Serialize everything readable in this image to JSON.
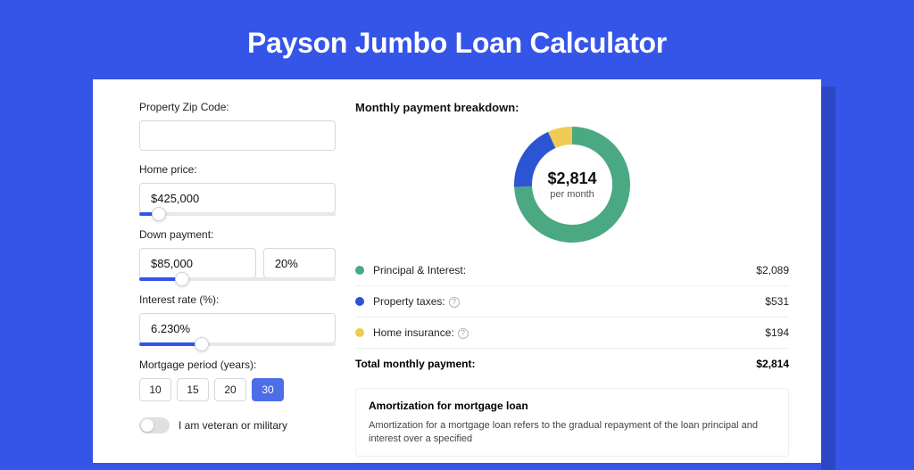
{
  "page": {
    "title": "Payson Jumbo Loan Calculator",
    "background_color": "#3554e8",
    "shadow_color": "#2c46c7",
    "card_bg": "#ffffff"
  },
  "form": {
    "zip": {
      "label": "Property Zip Code:",
      "value": ""
    },
    "home_price": {
      "label": "Home price:",
      "value": "$425,000",
      "slider_pct": 10
    },
    "down_payment": {
      "label": "Down payment:",
      "value": "$85,000",
      "pct_value": "20%",
      "slider_pct": 22
    },
    "interest": {
      "label": "Interest rate (%):",
      "value": "6.230%",
      "slider_pct": 32
    },
    "period": {
      "label": "Mortgage period (years):",
      "options": [
        "10",
        "15",
        "20",
        "30"
      ],
      "active": "30"
    },
    "veteran": {
      "label": "I am veteran or military",
      "checked": false
    }
  },
  "breakdown": {
    "title": "Monthly payment breakdown:",
    "center_value": "$2,814",
    "center_sub": "per month",
    "items": [
      {
        "label": "Principal & Interest:",
        "amount": "$2,089",
        "color": "#4aa983",
        "value": 2089,
        "info": false
      },
      {
        "label": "Property taxes:",
        "amount": "$531",
        "color": "#2b55d4",
        "value": 531,
        "info": true
      },
      {
        "label": "Home insurance:",
        "amount": "$194",
        "color": "#f0cb53",
        "value": 194,
        "info": true
      }
    ],
    "total_label": "Total monthly payment:",
    "total_amount": "$2,814",
    "donut": {
      "stroke_width": 20,
      "radius": 55,
      "bg": "#ffffff"
    }
  },
  "amortization": {
    "title": "Amortization for mortgage loan",
    "body": "Amortization for a mortgage loan refers to the gradual repayment of the loan principal and interest over a specified"
  }
}
